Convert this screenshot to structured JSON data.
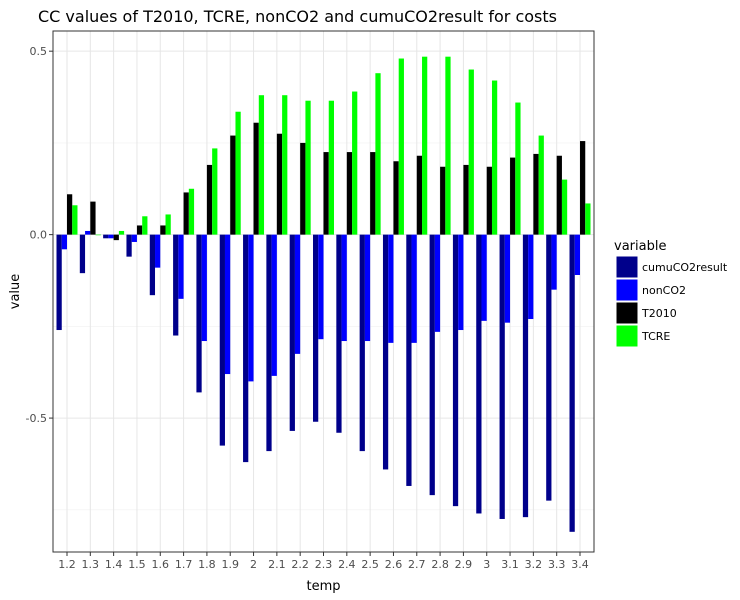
{
  "chart_data": {
    "type": "bar",
    "title": "CC values of T2010, TCRE, nonCO2 and cumuCO2result for costs",
    "xlabel": "temp",
    "ylabel": "value",
    "ylim": [
      -0.865,
      0.555
    ],
    "yticks": [
      -0.5,
      0.0,
      0.5
    ],
    "ytick_labels": [
      "-0.5",
      "0.0",
      "0.5"
    ],
    "grid": true,
    "legend": {
      "title": "variable",
      "position": "right"
    },
    "categories": [
      "1.2",
      "1.3",
      "1.4",
      "1.5",
      "1.6",
      "1.7",
      "1.8",
      "1.9",
      "2",
      "2.1",
      "2.2",
      "2.3",
      "2.4",
      "2.5",
      "2.6",
      "2.7",
      "2.8",
      "2.9",
      "3",
      "3.1",
      "3.2",
      "3.3",
      "3.4"
    ],
    "series": [
      {
        "name": "cumuCO2result",
        "color": "#00008B",
        "values": [
          -0.26,
          -0.105,
          -0.01,
          -0.06,
          -0.165,
          -0.275,
          -0.43,
          -0.575,
          -0.62,
          -0.59,
          -0.535,
          -0.51,
          -0.54,
          -0.59,
          -0.64,
          -0.685,
          -0.71,
          -0.74,
          -0.76,
          -0.775,
          -0.77,
          -0.725,
          -0.81
        ]
      },
      {
        "name": "nonCO2",
        "color": "#0000FF",
        "values": [
          -0.04,
          0.01,
          -0.01,
          -0.02,
          -0.09,
          -0.175,
          -0.29,
          -0.38,
          -0.4,
          -0.385,
          -0.325,
          -0.285,
          -0.29,
          -0.29,
          -0.295,
          -0.295,
          -0.265,
          -0.26,
          -0.235,
          -0.24,
          -0.23,
          -0.15,
          -0.11
        ]
      },
      {
        "name": "T2010",
        "color": "#000000",
        "values": [
          0.11,
          0.09,
          -0.015,
          0.025,
          0.025,
          0.115,
          0.19,
          0.27,
          0.305,
          0.275,
          0.25,
          0.225,
          0.225,
          0.225,
          0.2,
          0.215,
          0.185,
          0.19,
          0.185,
          0.21,
          0.22,
          0.215,
          0.255
        ]
      },
      {
        "name": "TCRE",
        "color": "#00FF00",
        "values": [
          0.08,
          0.0,
          0.01,
          0.05,
          0.055,
          0.125,
          0.235,
          0.335,
          0.38,
          0.38,
          0.365,
          0.365,
          0.39,
          0.44,
          0.48,
          0.485,
          0.485,
          0.45,
          0.42,
          0.36,
          0.27,
          0.15,
          0.085
        ]
      }
    ]
  }
}
